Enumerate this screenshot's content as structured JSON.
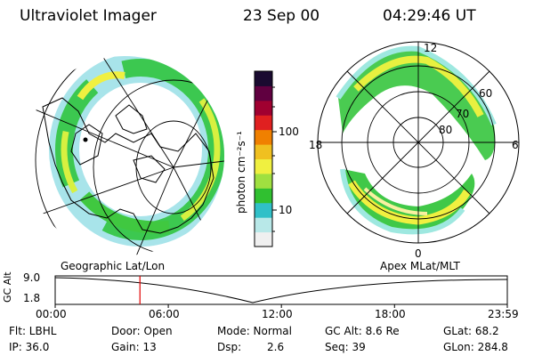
{
  "header": {
    "instrument": "Ultraviolet Imager",
    "date": "23 Sep 00",
    "time": "04:29:46 UT"
  },
  "colorbar": {
    "unit_label": "photon cm⁻²s⁻¹",
    "ticks": [
      "100",
      "10"
    ],
    "colors": [
      "#f0f0f0",
      "#b8e8e8",
      "#30c0c8",
      "#30c030",
      "#a0e040",
      "#f0f040",
      "#f0c020",
      "#f08000",
      "#e02020",
      "#a00030",
      "#600040",
      "#1a0a30"
    ]
  },
  "geo_map": {
    "label": "Geographic Lat/Lon"
  },
  "apex_map": {
    "label": "Apex MLat/MLT",
    "mlt_labels": {
      "top": "12",
      "left": "18",
      "right": "6",
      "bottom": "0"
    },
    "lat_labels": [
      "60",
      "70",
      "80"
    ]
  },
  "altitude_plot": {
    "ylabel": "GC Alt",
    "yticks": [
      "9.0",
      "1.8"
    ],
    "xticks": [
      "00:00",
      "06:00",
      "12:00",
      "18:00",
      "23:59"
    ],
    "marker_hour": 4.496,
    "line_color": "#e00000"
  },
  "info": {
    "row1": {
      "filter": "Flt: LBHL",
      "door": "Door: Open",
      "mode": "Mode: Normal",
      "gcalt": "GC Alt: 8.6 Re",
      "glat": "GLat: 68.2"
    },
    "row2": {
      "ip": "IP: 36.0",
      "gain": "Gain: 13",
      "dsp_label": "Dsp:",
      "dsp_value": "2.6",
      "seq": "Seq: 39",
      "glon": "GLon: 284.8"
    }
  }
}
